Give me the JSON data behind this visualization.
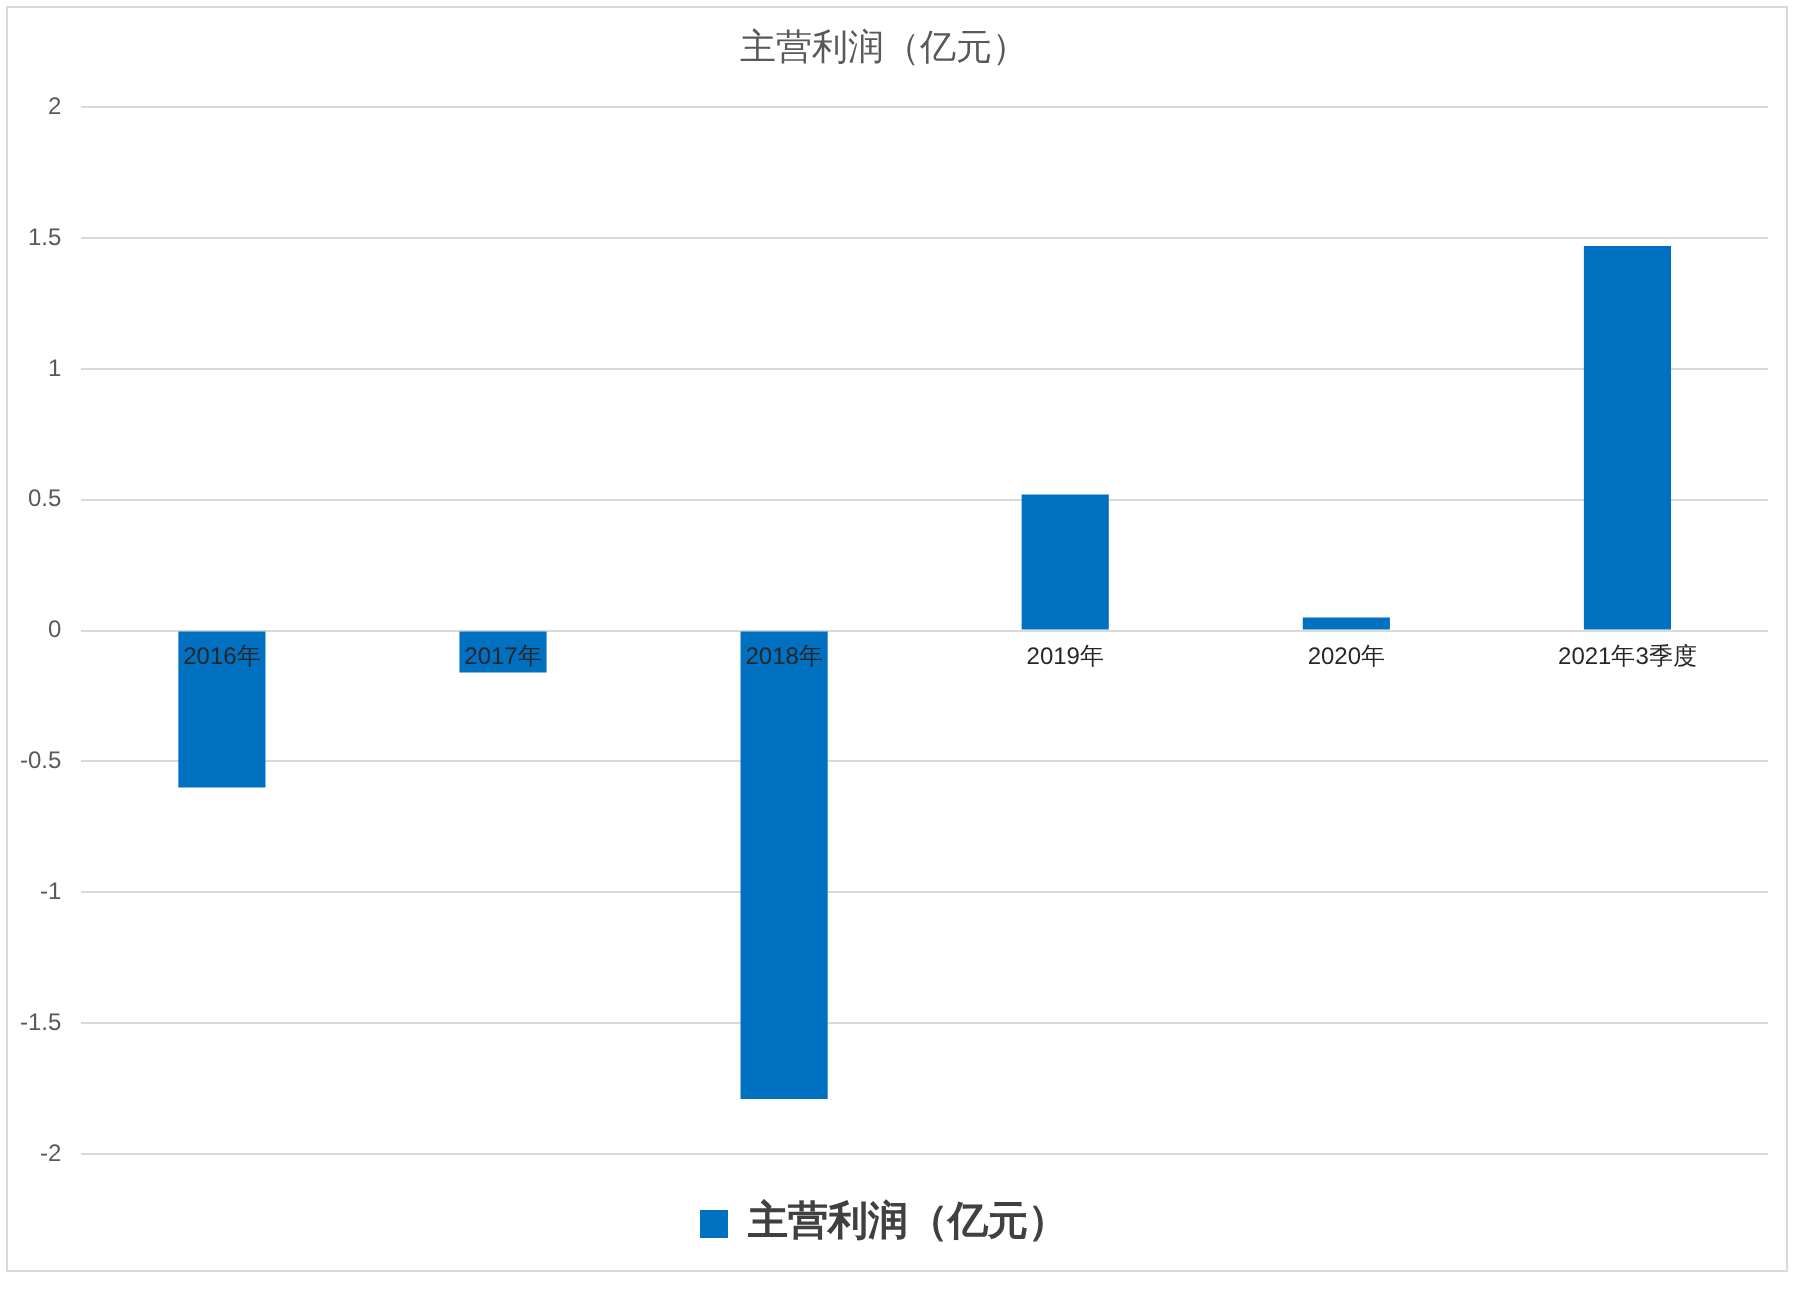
{
  "chart_data": {
    "type": "bar",
    "title": "主营利润（亿元）",
    "categories": [
      "2016年",
      "2017年",
      "2018年",
      "2019年",
      "2020年",
      "2021年3季度"
    ],
    "series": [
      {
        "name": "主营利润（亿元）",
        "color": "#0070c0",
        "values": [
          -0.6,
          -0.16,
          -1.79,
          0.52,
          0.05,
          1.47
        ]
      }
    ],
    "ylim": [
      -2,
      2
    ],
    "yticks": [
      -2,
      -1.5,
      -1,
      -0.5,
      0,
      0.5,
      1,
      1.5,
      2
    ],
    "grid": "y",
    "legend": "bottom"
  }
}
